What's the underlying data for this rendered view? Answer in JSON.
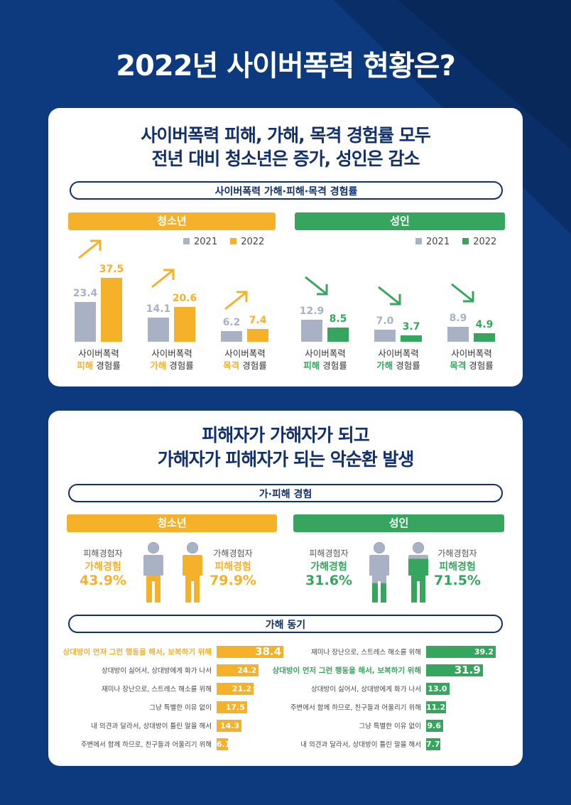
{
  "main_title": "2022년 사이버폭력 현황은?",
  "colors": {
    "background": "#0d3a7f",
    "navy": "#12306a",
    "orange": "#f6b12b",
    "green": "#36a65f",
    "gray": "#a9b2c5"
  },
  "section1": {
    "headline_1": "사이버폭력 피해, 가해, 목격 경험률 모두",
    "headline_2": "전년 대비 청소년은 증가, 성인은 감소",
    "pill": "사이버폭력 가해·피해·목격 경험률",
    "youth_label": "청소년",
    "adult_label": "성인",
    "legend_2021": "2021",
    "legend_2022": "2022",
    "caption_prefix": "사이버폭력",
    "caption_suffix": "경험률",
    "youth": [
      {
        "kind": "피해",
        "v2021": 23.4,
        "v2022": 37.5,
        "trend": "up"
      },
      {
        "kind": "가해",
        "v2021": 14.1,
        "v2022": 20.6,
        "trend": "up"
      },
      {
        "kind": "목격",
        "v2021": 6.2,
        "v2022": 7.4,
        "trend": "up"
      }
    ],
    "adult": [
      {
        "kind": "피해",
        "v2021": 12.9,
        "v2022": 8.5,
        "trend": "down"
      },
      {
        "kind": "가해",
        "v2021": 7.0,
        "v2022": 3.7,
        "trend": "down"
      },
      {
        "kind": "목격",
        "v2021": 8.9,
        "v2022": 4.9,
        "trend": "down"
      }
    ]
  },
  "section2": {
    "headline_1": "피해자가 가해자가 되고",
    "headline_2": "가해자가 피해자가 되는 악순환 발생",
    "pill": "가·피해 경험",
    "youth_label": "청소년",
    "adult_label": "성인",
    "youth_people": [
      {
        "line1": "피해경험자",
        "line2": "가해경험",
        "pct": "43.9%",
        "fill": 0.439
      },
      {
        "line1": "가해경험자",
        "line2": "피해경험",
        "pct": "79.9%",
        "fill": 0.799
      }
    ],
    "adult_people": [
      {
        "line1": "피해경험자",
        "line2": "가해경험",
        "pct": "31.6%",
        "fill": 0.316
      },
      {
        "line1": "가해경험자",
        "line2": "피해경험",
        "pct": "71.5%",
        "fill": 0.715
      }
    ],
    "motive_pill": "가해 동기",
    "youth_motives": [
      {
        "label": "상대방이 먼저 그런 행동을 해서, 보복하기 위해",
        "value": "38.4",
        "strong": true
      },
      {
        "label": "상대방이 싫어서, 상대방에게 화가 나서",
        "value": "24.2",
        "strong": false
      },
      {
        "label": "재미나 장난으로, 스트레스 해소를 위해",
        "value": "21.2",
        "strong": false
      },
      {
        "label": "그냥 특별한 이유 없이",
        "value": "17.5",
        "strong": false
      },
      {
        "label": "내 의견과 달라서, 상대방이 틀린 말을 해서",
        "value": "14.3",
        "strong": false
      },
      {
        "label": "주변에서 함께 하므로, 친구들과 어울리기 위해",
        "value": "6.1",
        "strong": false
      }
    ],
    "adult_motives": [
      {
        "label": "재미나 장난으로, 스트레스 해소를 위해",
        "value": "39.2",
        "strong": false
      },
      {
        "label": "상대방이 먼저 그런 행동을 해서, 보복하기 위해",
        "value": "31.9",
        "strong": true
      },
      {
        "label": "상대방이 싫어서, 상대방에게 화가 나서",
        "value": "13.0",
        "strong": false
      },
      {
        "label": "주변에서 함께 하므로, 친구들과 어울리기 위해",
        "value": "11.2",
        "strong": false
      },
      {
        "label": "그냥 특별한 이유 없이",
        "value": "9.6",
        "strong": false
      },
      {
        "label": "내 의견과 달라서, 상대방이 틀린 말을 해서",
        "value": "7.7",
        "strong": false
      }
    ]
  }
}
